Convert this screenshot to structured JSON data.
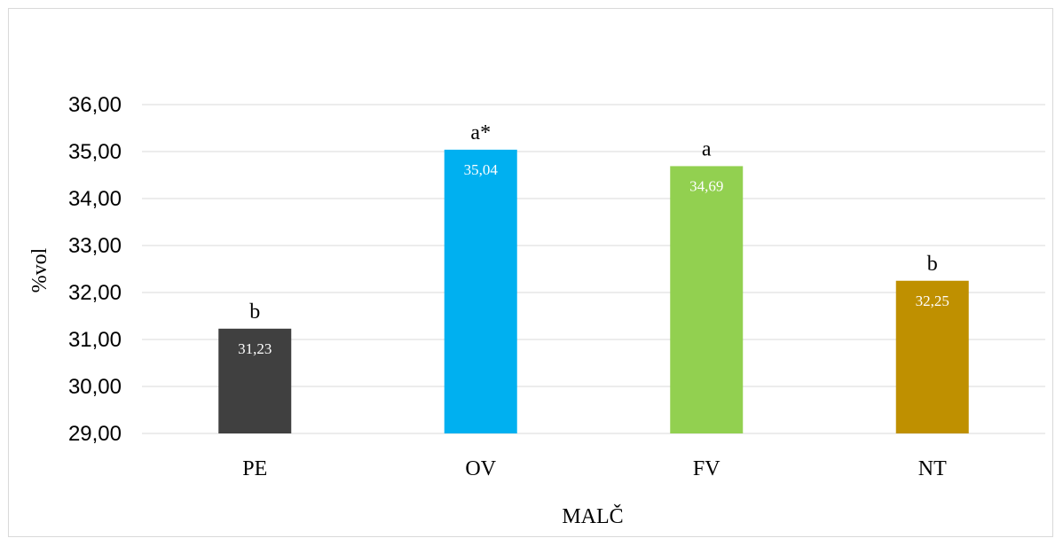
{
  "chart_data": {
    "type": "bar",
    "categories": [
      "PE",
      "OV",
      "FV",
      "NT"
    ],
    "values": [
      31.23,
      35.04,
      34.69,
      32.25
    ],
    "data_labels": [
      "31,23",
      "35,04",
      "34,69",
      "32,25"
    ],
    "significance_letters": [
      "b",
      "a*",
      "a",
      "b"
    ],
    "colors": [
      "#404040",
      "#00b0f0",
      "#92d050",
      "#bf9000"
    ],
    "title": "",
    "xlabel": "MALČ",
    "ylabel": "%vol",
    "ylim": [
      29,
      36
    ],
    "yticks": [
      29,
      30,
      31,
      32,
      33,
      34,
      35,
      36
    ],
    "ytick_labels": [
      "29,00",
      "30,00",
      "31,00",
      "32,00",
      "33,00",
      "34,00",
      "35,00",
      "36,00"
    ],
    "grid": true,
    "legend": "none"
  }
}
